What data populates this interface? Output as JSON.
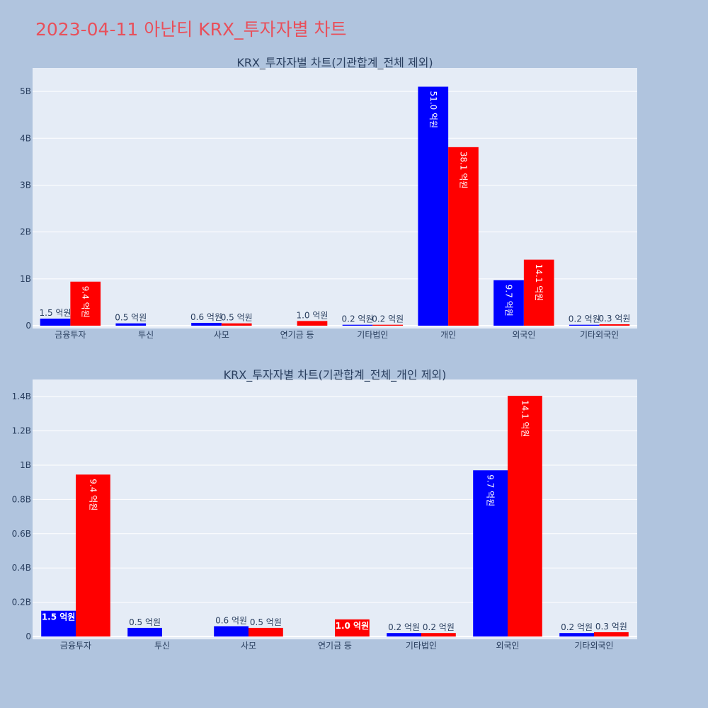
{
  "page_title": "2023-04-11 아난티 KRX_투자자별 차트",
  "colors": {
    "background": "#b0c4de",
    "plot_bg": "#e5ecf6",
    "series_blue": "#0000ff",
    "series_red": "#ff0000",
    "title": "#e8505b",
    "text": "#2a3f5f"
  },
  "chart_data": [
    {
      "type": "bar",
      "title": "KRX_투자자별 차트(기관합계_전체 제외)",
      "categories": [
        "금융투자",
        "투신",
        "사모",
        "연기금 등",
        "기타법인",
        "개인",
        "외국인",
        "기타외국인"
      ],
      "yticks": [
        "0",
        "1B",
        "2B",
        "3B",
        "4B",
        "5B"
      ],
      "ylim": [
        0,
        5.5
      ],
      "grid": true,
      "series": [
        {
          "color": "#0000ff",
          "values": [
            0.15,
            0.05,
            0.06,
            0,
            0.02,
            5.1,
            0.97,
            0.02
          ],
          "labels": [
            "1.5 억원",
            "0.5 억원",
            "0.6 억원",
            "",
            "0.2 억원",
            "51.0 억원",
            "9.7 억원",
            "0.2 억원"
          ]
        },
        {
          "color": "#ff0000",
          "values": [
            0.94,
            0,
            0.05,
            0.1,
            0.02,
            3.81,
            1.41,
            0.03
          ],
          "labels": [
            "9.4 억원",
            "",
            "0.5 억원",
            "1.0 억원",
            "0.2 억원",
            "38.1 억원",
            "14.1 억원",
            "0.3 억원"
          ]
        }
      ]
    },
    {
      "type": "bar",
      "title": "KRX_투자자별 차트(기관합계_전체_개인 제외)",
      "categories": [
        "금융투자",
        "투신",
        "사모",
        "연기금 등",
        "기타법인",
        "외국인",
        "기타외국인"
      ],
      "yticks": [
        "0",
        "0.2B",
        "0.4B",
        "0.6B",
        "0.8B",
        "1B",
        "1.2B",
        "1.4B"
      ],
      "ylim": [
        0,
        1.5
      ],
      "grid": true,
      "series": [
        {
          "color": "#0000ff",
          "values": [
            0.15,
            0.05,
            0.06,
            0,
            0.02,
            0.97,
            0.02
          ],
          "labels": [
            "1.5 억원",
            "0.5 억원",
            "0.6 억원",
            "",
            "0.2 억원",
            "9.7 억원",
            "0.2 억원"
          ]
        },
        {
          "color": "#ff0000",
          "values": [
            0.945,
            0,
            0.05,
            0.1,
            0.02,
            1.405,
            0.025
          ],
          "labels": [
            "9.4 억원",
            "",
            "0.5 억원",
            "1.0 억원",
            "0.2 억원",
            "14.1 억원",
            "0.3 억원"
          ]
        }
      ]
    }
  ]
}
